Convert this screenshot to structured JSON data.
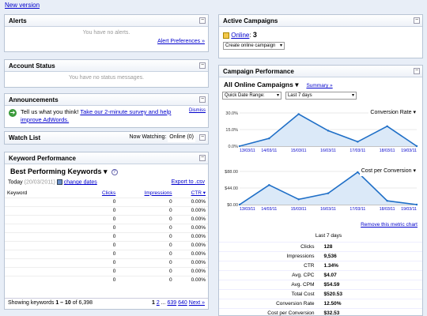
{
  "top": {
    "new_version": "New version"
  },
  "alerts": {
    "title": "Alerts",
    "empty": "You have no alerts.",
    "prefs": "Alert Preferences »"
  },
  "account_status": {
    "title": "Account Status",
    "empty": "You have no status messages."
  },
  "announcements": {
    "title": "Announcements",
    "text_prefix": "Tell us what you think!",
    "survey_link": "Take our 2-minute survey and help improve AdWords.",
    "dismiss": "Dismiss"
  },
  "watch_list": {
    "title": "Watch List",
    "now_watching": "Now Watching:",
    "value": "Online (0)"
  },
  "keyword_perf": {
    "title": "Keyword Performance",
    "dropdown": "Best Performing Keywords ▾",
    "today_label": "Today",
    "today_date": "(20/03/2011)",
    "change_dates": "change dates",
    "export": "Export to .csv",
    "columns": {
      "keyword": "Keyword",
      "clicks": "Clicks",
      "impressions": "Impressions",
      "ctr": "CTR ▾"
    },
    "rows": [
      {
        "clicks": "0",
        "impressions": "0",
        "ctr": "0.00%"
      },
      {
        "clicks": "0",
        "impressions": "0",
        "ctr": "0.00%"
      },
      {
        "clicks": "0",
        "impressions": "0",
        "ctr": "0.00%"
      },
      {
        "clicks": "0",
        "impressions": "0",
        "ctr": "0.00%"
      },
      {
        "clicks": "0",
        "impressions": "0",
        "ctr": "0.00%"
      },
      {
        "clicks": "0",
        "impressions": "0",
        "ctr": "0.00%"
      },
      {
        "clicks": "0",
        "impressions": "0",
        "ctr": "0.00%"
      },
      {
        "clicks": "0",
        "impressions": "0",
        "ctr": "0.00%"
      },
      {
        "clicks": "0",
        "impressions": "0",
        "ctr": "0.00%"
      },
      {
        "clicks": "0",
        "impressions": "0",
        "ctr": "0.00%"
      }
    ],
    "showing_prefix": "Showing keywords ",
    "showing_range": "1 – 10",
    "showing_suffix": " of 6,398",
    "pages": {
      "p1": "1",
      "p2": "2",
      "dots": "...",
      "p639": "639",
      "p640": "640",
      "next": "Next »"
    }
  },
  "active_campaigns": {
    "title": "Active Campaigns",
    "online_label": "Online",
    "count": "3",
    "create_select": "Create online campaign"
  },
  "campaign_perf": {
    "title": "Campaign Performance",
    "dropdown": "All Online Campaigns ▾",
    "summary": "Summary »",
    "range_select": "Quick Date Range:",
    "days_select": "Last 7 days",
    "metric1_select": "Conversion Rate",
    "metric2_select": "Cost per Conversion",
    "remove_chart": "Remove this metric chart",
    "stats_header": "Last 7 days",
    "stats": [
      {
        "label": "Clicks",
        "value": "128"
      },
      {
        "label": "Impressions",
        "value": "9,536"
      },
      {
        "label": "CTR",
        "value": "1.34%"
      },
      {
        "label": "Avg. CPC",
        "value": "$4.07"
      },
      {
        "label": "Avg. CPM",
        "value": "$54.59"
      },
      {
        "label": "Total Cost",
        "value": "$520.53"
      },
      {
        "label": "Conversion Rate",
        "value": "12.50%"
      },
      {
        "label": "Cost per Conversion",
        "value": "$32.53"
      }
    ]
  },
  "chart_data": [
    {
      "type": "area",
      "x": [
        "13/03/11",
        "14/03/11",
        "15/03/11",
        "16/03/11",
        "17/03/11",
        "18/03/11",
        "19/03/11"
      ],
      "x_tick_labels": [
        "13/03/11",
        "14/03/11",
        "15/03/11",
        "16/03/11",
        "17/03/11",
        "18/03/11",
        "19/03/11"
      ],
      "values": [
        0,
        7,
        29,
        14,
        4,
        18,
        0
      ],
      "y_ticks": [
        "0.0%",
        "15.0%",
        "30.0%"
      ],
      "ylim": [
        0,
        30
      ],
      "ylabel": ""
    },
    {
      "type": "area",
      "x": [
        "13/03/11",
        "14/03/11",
        "15/03/11",
        "16/03/11",
        "17/03/11",
        "18/03/11",
        "19/03/11"
      ],
      "x_tick_labels": [
        "13/03/11",
        "14/03/11",
        "15/03/11",
        "16/03/11",
        "17/03/11",
        "18/03/11",
        "19/03/11"
      ],
      "values": [
        0,
        52,
        14,
        30,
        86,
        10,
        0
      ],
      "y_ticks": [
        "$0.00",
        "$44.00",
        "$88.00"
      ],
      "ylim": [
        0,
        88
      ],
      "ylabel": ""
    }
  ],
  "colors": {
    "line": "#1f6fc7",
    "fill": "#dbe9f8",
    "link": "#0000cc"
  }
}
